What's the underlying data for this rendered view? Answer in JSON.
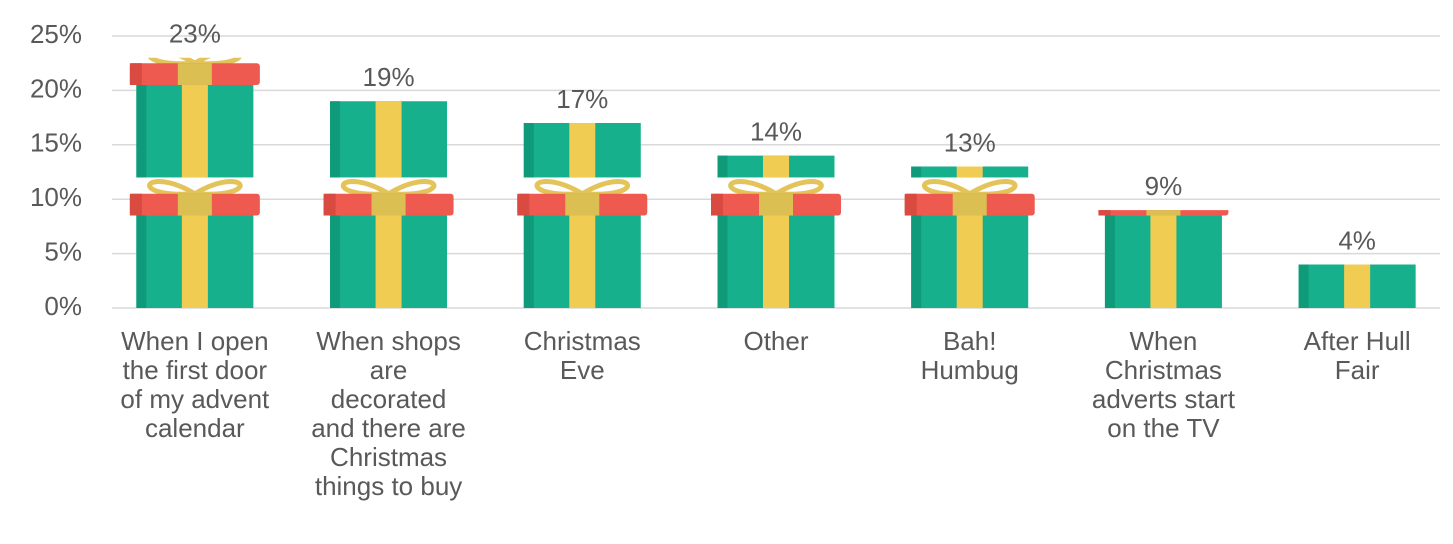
{
  "chart_data": {
    "type": "bar",
    "categories": [
      "When I open\nthe first door\nof my advent\ncalendar",
      "When shops\nare\ndecorated\nand there are\nChristmas\nthings to buy",
      "Christmas\nEve",
      "Other",
      "Bah!\nHumbug",
      "When\nChristmas\nadverts start\non the TV",
      "After Hull\nFair"
    ],
    "values": [
      23,
      19,
      17,
      14,
      13,
      9,
      4
    ],
    "value_labels": [
      "23%",
      "19%",
      "17%",
      "14%",
      "13%",
      "9%",
      "4%"
    ],
    "color": "#17b08d",
    "ylim": [
      0,
      25
    ],
    "yticks": [
      {
        "value": 0,
        "label": "0%"
      },
      {
        "value": 5,
        "label": "5%"
      },
      {
        "value": 10,
        "label": "10%"
      },
      {
        "value": 15,
        "label": "15%"
      },
      {
        "value": 20,
        "label": "20%"
      },
      {
        "value": 25,
        "label": "25%"
      }
    ],
    "grid": true
  }
}
